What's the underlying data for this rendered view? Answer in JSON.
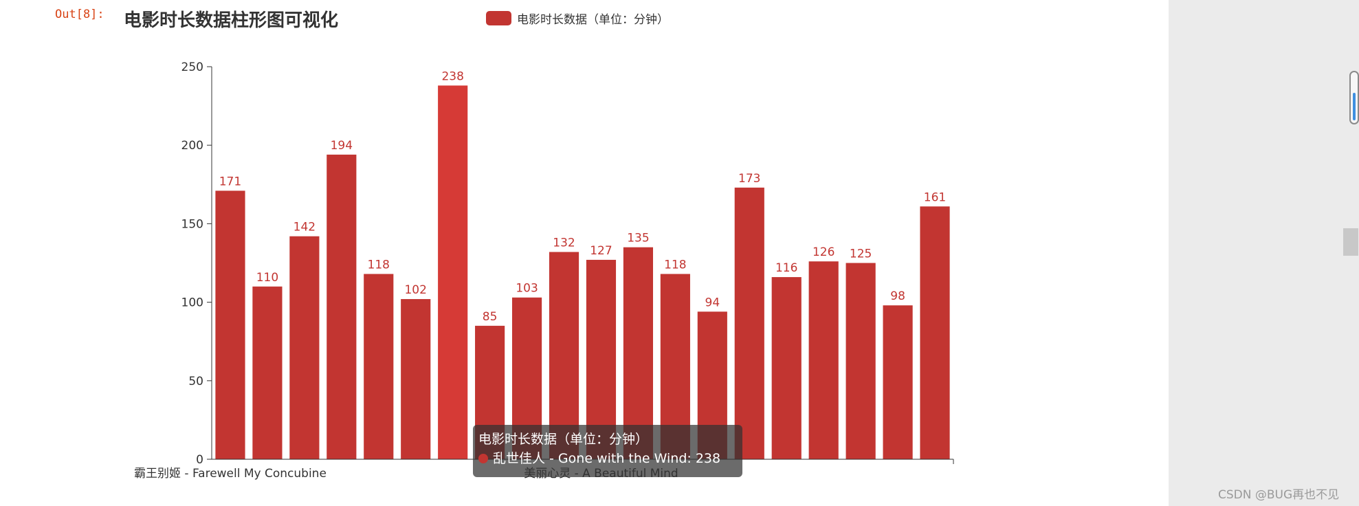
{
  "notebook": {
    "out_prompt": "Out[8]:"
  },
  "watermark": "CSDN @BUG再也不见",
  "tooltip": {
    "title": "电影时长数据（单位：分钟）",
    "line": "乱世佳人 - Gone with the Wind: 238"
  },
  "colors": {
    "bar": "#c23531",
    "bar_highlight": "#d63a36",
    "axis": "#333333"
  },
  "chart_data": {
    "type": "bar",
    "title": "电影时长数据柱形图可视化",
    "legend": {
      "position": "top-center",
      "entries": [
        "电影时长数据（单位：分钟）"
      ]
    },
    "xlabel": "",
    "ylabel": "",
    "ylim": [
      0,
      250
    ],
    "yticks": [
      0,
      50,
      100,
      150,
      200,
      250
    ],
    "grid": false,
    "highlight_index": 6,
    "visible_category_labels": [
      {
        "index": 0,
        "text": "霸王别姬 - Farewell My Concubine"
      },
      {
        "index": 10,
        "text": "美丽心灵 - A Beautiful Mind"
      }
    ],
    "series": [
      {
        "name": "电影时长数据（单位：分钟）",
        "values": [
          171,
          110,
          142,
          194,
          118,
          102,
          238,
          85,
          103,
          132,
          127,
          135,
          118,
          94,
          173,
          116,
          126,
          125,
          98,
          161
        ]
      }
    ]
  }
}
